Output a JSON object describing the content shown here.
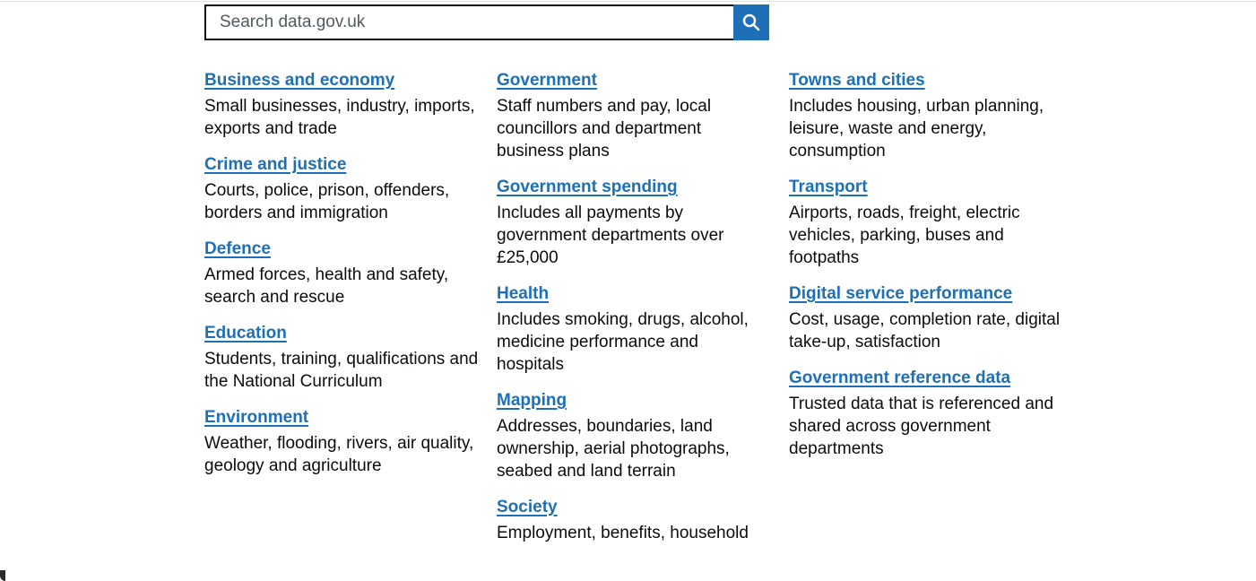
{
  "search": {
    "placeholder": "Search data.gov.uk",
    "button_icon": "search-icon"
  },
  "accent_color": "#1d70b8",
  "columns": [
    {
      "topics": [
        {
          "title": "Business and economy",
          "description": "Small businesses, industry, imports, exports and trade"
        },
        {
          "title": "Crime and justice",
          "description": "Courts, police, prison, offenders, borders and immigration"
        },
        {
          "title": "Defence",
          "description": "Armed forces, health and safety, search and rescue"
        },
        {
          "title": "Education",
          "description": "Students, training, qualifications and the National Curriculum"
        },
        {
          "title": "Environment",
          "description": "Weather, flooding, rivers, air quality, geology and agriculture"
        }
      ]
    },
    {
      "topics": [
        {
          "title": "Government",
          "description": "Staff numbers and pay, local councillors and department business plans"
        },
        {
          "title": "Government spending",
          "description": "Includes all payments by government departments over £25,000"
        },
        {
          "title": "Health",
          "description": "Includes smoking, drugs, alcohol, medicine performance and hospitals"
        },
        {
          "title": "Mapping",
          "description": "Addresses, boundaries, land ownership, aerial photographs, seabed and land terrain"
        },
        {
          "title": "Society",
          "description": "Employment, benefits, household"
        }
      ]
    },
    {
      "topics": [
        {
          "title": "Towns and cities",
          "description": "Includes housing, urban planning, leisure, waste and energy, consumption"
        },
        {
          "title": "Transport",
          "description": "Airports, roads, freight, electric vehicles, parking, buses and footpaths"
        },
        {
          "title": "Digital service performance",
          "description": "Cost, usage, completion rate, digital take-up, satisfaction"
        },
        {
          "title": "Government reference data",
          "description": "Trusted data that is referenced and shared across government departments"
        }
      ]
    }
  ]
}
